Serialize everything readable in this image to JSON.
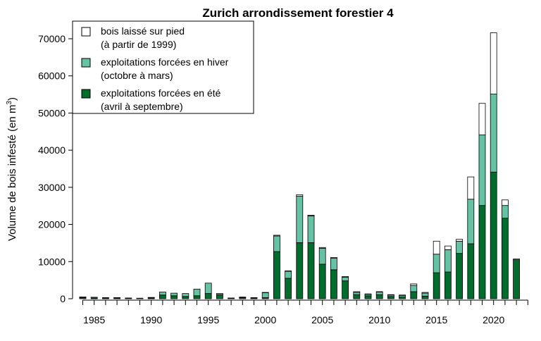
{
  "chart_data": {
    "type": "bar",
    "stacked": true,
    "title": "Zurich arrondissement forestier 4",
    "ylabel_main": "Volume de bois infesté (en m",
    "ylabel_sup": "3",
    "ylabel_close": ")",
    "xlabel": "",
    "ylim": [
      0,
      70000
    ],
    "yticks": [
      0,
      10000,
      20000,
      30000,
      40000,
      50000,
      60000,
      70000
    ],
    "xticks": [
      1985,
      1990,
      1995,
      2000,
      2005,
      2010,
      2015,
      2020
    ],
    "legend_position": "top-left",
    "categories": [
      1984,
      1985,
      1986,
      1987,
      1988,
      1989,
      1990,
      1991,
      1992,
      1993,
      1994,
      1995,
      1996,
      1997,
      1998,
      1999,
      2000,
      2001,
      2002,
      2003,
      2004,
      2005,
      2006,
      2007,
      2008,
      2009,
      2010,
      2011,
      2012,
      2013,
      2014,
      2015,
      2016,
      2017,
      2018,
      2019,
      2020,
      2021,
      2022
    ],
    "series": [
      {
        "name": "exploitations forcées en été",
        "name_line2": "(avril à septembre)",
        "color": "#006d2c",
        "values": [
          300,
          200,
          200,
          200,
          150,
          100,
          200,
          1000,
          800,
          600,
          800,
          1400,
          1100,
          150,
          300,
          200,
          300,
          12700,
          5500,
          15100,
          15100,
          9300,
          7800,
          4800,
          1100,
          800,
          1100,
          600,
          500,
          1900,
          700,
          7000,
          7200,
          12200,
          14800,
          25100,
          34100,
          21700,
          10500
        ]
      },
      {
        "name": "exploitations forcées en hiver",
        "name_line2": "(octobre à mars)",
        "color": "#66c2a4",
        "values": [
          200,
          200,
          100,
          100,
          50,
          50,
          150,
          800,
          700,
          800,
          1800,
          2800,
          300,
          50,
          150,
          100,
          1300,
          4200,
          1900,
          12500,
          7200,
          4300,
          3100,
          1000,
          600,
          400,
          700,
          400,
          400,
          1700,
          800,
          5000,
          6000,
          3300,
          12000,
          19000,
          21000,
          3400,
          0
        ]
      },
      {
        "name": "bois laissé sur pied",
        "name_line2": "(à partir de 1999)",
        "color": "#ffffff",
        "values": [
          0,
          0,
          0,
          0,
          0,
          0,
          0,
          0,
          0,
          0,
          0,
          0,
          0,
          0,
          0,
          0,
          100,
          200,
          100,
          400,
          200,
          200,
          200,
          200,
          200,
          100,
          100,
          100,
          100,
          400,
          200,
          3500,
          1000,
          500,
          6000,
          8500,
          16500,
          1500,
          200
        ]
      }
    ]
  }
}
